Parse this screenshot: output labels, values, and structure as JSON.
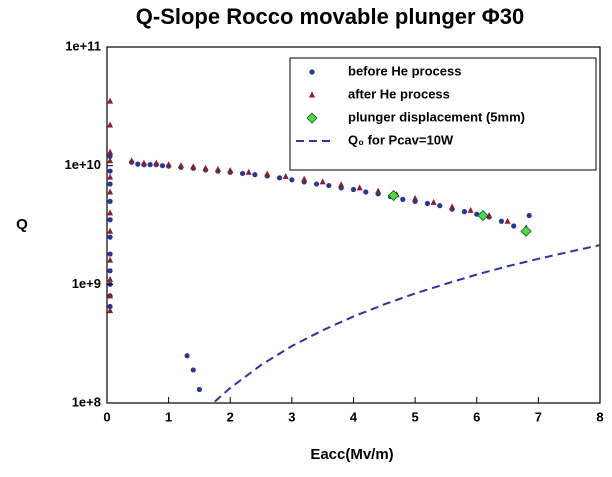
{
  "chart_data": {
    "type": "scatter",
    "title": "Q-Slope Rocco movable plunger Φ30",
    "x_label": "Eacc(Mv/m)",
    "y_label": "Q",
    "xlim": [
      0,
      8
    ],
    "xticks": [
      0,
      1,
      2,
      3,
      4,
      5,
      6,
      7,
      8
    ],
    "ylim": [
      100000000,
      100000000000
    ],
    "yticks": [
      {
        "value": 100000000,
        "label": "1e+8"
      },
      {
        "value": 1000000000,
        "label": "1e+9"
      },
      {
        "value": 10000000000,
        "label": "1e+10"
      },
      {
        "value": 100000000000,
        "label": "1e+11"
      }
    ],
    "log_y": true,
    "legend": "upper right",
    "series": [
      {
        "name": "before He process",
        "marker": "circle",
        "color": "#28359a",
        "x": [
          0.05,
          0.05,
          0.05,
          0.05,
          0.05,
          0.05,
          0.05,
          0.05,
          0.05,
          0.05,
          0.05,
          0.4,
          0.5,
          0.6,
          0.7,
          0.8,
          0.9,
          1.0,
          1.2,
          1.4,
          1.6,
          1.8,
          2.0,
          2.2,
          2.4,
          2.6,
          2.8,
          3.0,
          3.2,
          3.4,
          3.6,
          3.8,
          4.0,
          4.2,
          4.4,
          4.6,
          4.8,
          5.0,
          5.2,
          5.4,
          5.6,
          5.8,
          6.0,
          6.2,
          6.4,
          6.6,
          6.8,
          6.85,
          1.3,
          1.4,
          1.5
        ],
        "values": [
          12000000000,
          9000000000,
          7000000000,
          5000000000,
          3500000000,
          2500000000,
          1800000000,
          1300000000,
          1000000000,
          800000000,
          650000000,
          10700000000,
          10300000000,
          10200000000,
          10200000000,
          10200000000,
          10000000000,
          9900000000,
          9700000000,
          9500000000,
          9200000000,
          9000000000,
          8800000000,
          8600000000,
          8400000000,
          8200000000,
          7900000000,
          7600000000,
          7300000000,
          7000000000,
          6800000000,
          6500000000,
          6300000000,
          6000000000,
          5800000000,
          5500000000,
          5200000000,
          5000000000,
          4800000000,
          4600000000,
          4300000000,
          4100000000,
          3900000000,
          3700000000,
          3400000000,
          3100000000,
          2800000000,
          3800000000,
          250000000,
          190000000,
          130000000
        ]
      },
      {
        "name": "after He process",
        "marker": "triangle",
        "color": "#8b1e2e",
        "x": [
          0.05,
          0.05,
          0.05,
          0.05,
          0.05,
          0.05,
          0.05,
          0.05,
          0.05,
          0.05,
          0.05,
          0.05,
          0.4,
          0.6,
          0.8,
          1.0,
          1.2,
          1.4,
          1.6,
          1.8,
          2.0,
          2.3,
          2.6,
          2.9,
          3.2,
          3.5,
          3.8,
          4.1,
          4.4,
          4.7,
          5.0,
          5.3,
          5.6,
          5.9,
          6.2,
          6.5,
          6.8
        ],
        "values": [
          35000000000,
          22000000000,
          13000000000,
          11000000000,
          8000000000,
          6000000000,
          4000000000,
          2800000000,
          1600000000,
          1100000000,
          800000000,
          600000000,
          11000000000,
          10500000000,
          10500000000,
          10200000000,
          10000000000,
          9800000000,
          9500000000,
          9300000000,
          9100000000,
          8800000000,
          8500000000,
          8100000000,
          7700000000,
          7300000000,
          6900000000,
          6500000000,
          6100000000,
          5700000000,
          5300000000,
          4900000000,
          4500000000,
          4200000000,
          3800000000,
          3400000000,
          3000000000
        ]
      },
      {
        "name": "plunger displacement (5mm)",
        "marker": "diamond",
        "color": "#44dd44",
        "x": [
          4.65,
          6.1,
          6.8
        ],
        "values": [
          5600000000,
          3800000000,
          2800000000
        ]
      },
      {
        "name": "Q₀ for Pcav=10W",
        "marker": "dashed-line",
        "color": "#2a33aa",
        "x": [
          1.75,
          2,
          2.5,
          3,
          3.5,
          4,
          4.5,
          5,
          5.5,
          6,
          6.5,
          7,
          7.5,
          8
        ],
        "values": [
          103000000,
          134000000,
          209000000,
          302000000,
          410000000,
          536000000,
          678000000,
          838000000,
          1010000000,
          1210000000,
          1420000000,
          1640000000,
          1880000000,
          2140000000
        ]
      }
    ]
  }
}
